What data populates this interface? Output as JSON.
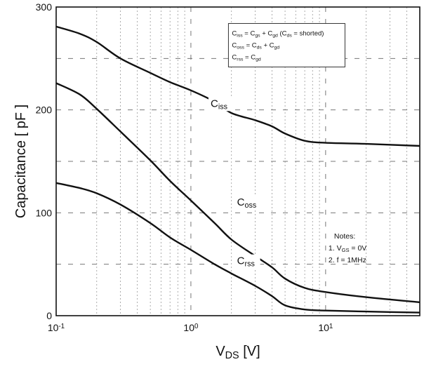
{
  "chart_data": {
    "type": "line",
    "xscale": "log",
    "xlim": [
      0.1,
      50
    ],
    "ylim": [
      0,
      300
    ],
    "grid": true,
    "xlabel": "V",
    "xlabel_sub": "DS",
    "xlabel_unit": "[V]",
    "ylabel": "Capacitance [ pF ]",
    "x_ticks": [
      {
        "value": 0.1,
        "base": "10",
        "exp": "-1"
      },
      {
        "value": 1,
        "base": "10",
        "exp": "0"
      },
      {
        "value": 10,
        "base": "10",
        "exp": "1"
      }
    ],
    "y_ticks": [
      0,
      100,
      200,
      300
    ],
    "series": [
      {
        "name": "Ciss",
        "x": [
          0.1,
          0.15,
          0.2,
          0.3,
          0.5,
          0.7,
          1,
          1.5,
          2,
          3,
          4,
          5,
          7,
          10,
          20,
          50
        ],
        "y": [
          281,
          274,
          266,
          250,
          236,
          227,
          219,
          208,
          197,
          190,
          184,
          177,
          170,
          168,
          167,
          165
        ]
      },
      {
        "name": "Coss",
        "x": [
          0.1,
          0.15,
          0.2,
          0.3,
          0.5,
          0.7,
          1,
          1.5,
          2,
          3,
          4,
          5,
          7,
          10,
          20,
          50
        ],
        "y": [
          226,
          215,
          201,
          179,
          151,
          131,
          112,
          90,
          74,
          58,
          47,
          36,
          27,
          23,
          18,
          13
        ]
      },
      {
        "name": "Crss",
        "x": [
          0.1,
          0.15,
          0.2,
          0.3,
          0.5,
          0.7,
          1,
          1.5,
          2,
          3,
          4,
          5,
          7,
          10,
          20,
          50
        ],
        "y": [
          129,
          124,
          119,
          108,
          90,
          76,
          64,
          50,
          41,
          29,
          19,
          10,
          6,
          5,
          4,
          3
        ]
      }
    ],
    "series_labels": [
      {
        "main": "C",
        "sub": "iss",
        "x": 1.4,
        "y": 203
      },
      {
        "main": "C",
        "sub": "oss",
        "x": 2.2,
        "y": 107
      },
      {
        "main": "C",
        "sub": "rss",
        "x": 2.2,
        "y": 50
      }
    ],
    "legend": {
      "placement": "top-right",
      "lines": [
        [
          [
            "C",
            ""
          ],
          [
            "iss",
            "sub"
          ],
          [
            " = C",
            ""
          ],
          [
            "gs",
            "sub"
          ],
          [
            " + C",
            ""
          ],
          [
            "gd",
            "sub"
          ],
          [
            " (C",
            ""
          ],
          [
            "ds",
            "sub"
          ],
          [
            " = shorted)",
            ""
          ]
        ],
        [
          [
            "C",
            ""
          ],
          [
            "oss",
            "sub"
          ],
          [
            " = C",
            ""
          ],
          [
            "ds",
            "sub"
          ],
          [
            " + C",
            ""
          ],
          [
            "gd",
            "sub"
          ]
        ],
        [
          [
            "C",
            ""
          ],
          [
            "rss",
            "sub"
          ],
          [
            " = C",
            ""
          ],
          [
            "gd",
            "sub"
          ]
        ]
      ]
    },
    "notes": {
      "placement": "right",
      "lines": [
        [
          [
            "Notes:",
            ""
          ]
        ],
        [
          [
            "1. V",
            ""
          ],
          [
            "GS",
            "sub"
          ],
          [
            " = 0V",
            ""
          ]
        ],
        [
          [
            "2. f = 1MHz",
            ""
          ]
        ]
      ]
    }
  }
}
